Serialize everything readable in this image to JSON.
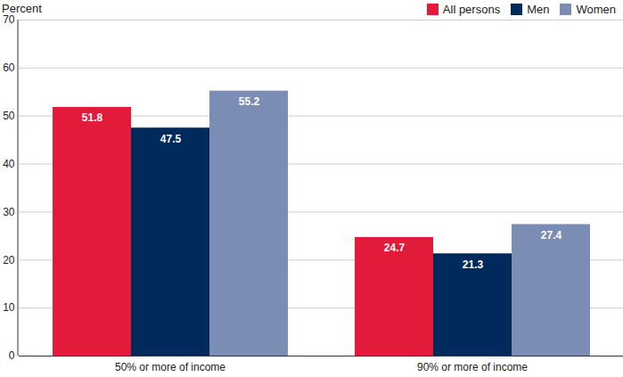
{
  "chart_data": {
    "type": "bar",
    "y_label": "Percent",
    "categories": [
      "50% or more of income",
      "90% or more of income"
    ],
    "series": [
      {
        "name": "All persons",
        "color": "#e31b3b",
        "values": [
          51.8,
          24.7
        ]
      },
      {
        "name": "Men",
        "color": "#002a5c",
        "values": [
          47.5,
          21.3
        ]
      },
      {
        "name": "Women",
        "color": "#7b8db5",
        "values": [
          55.2,
          27.4
        ]
      }
    ],
    "ylim": [
      0,
      70
    ],
    "yticks": [
      0,
      10,
      20,
      30,
      40,
      50,
      60,
      70
    ],
    "grid": true,
    "data_labels": true,
    "legend": "top-right"
  }
}
